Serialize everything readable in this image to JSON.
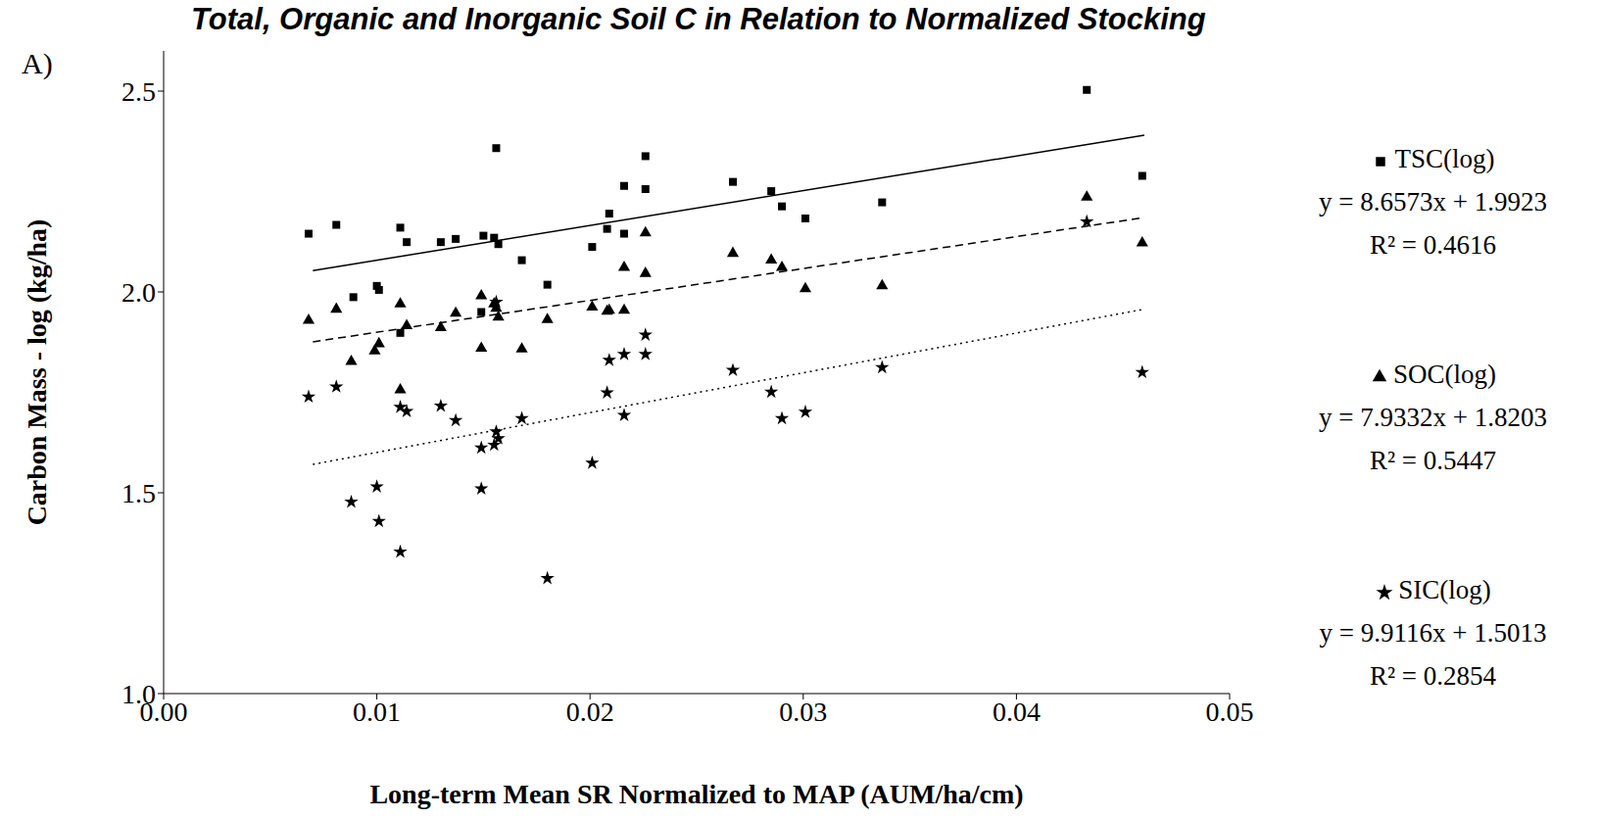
{
  "chart_data": {
    "type": "scatter",
    "title": "Total, Organic and Inorganic Soil C in Relation to Normalized Stocking",
    "panel_label": "A)",
    "x_label": "Long-term Mean SR Normalized to MAP (AUM/ha/cm)",
    "y_label": "Carbon Mass - log (kg/ha)",
    "xlim": [
      0,
      0.05
    ],
    "xticks": [
      {
        "value": 0,
        "label": "0.00"
      },
      0.01,
      0.02,
      0.03,
      0.04,
      0.05
    ],
    "ylim": [
      1,
      2.6
    ],
    "yticks": [
      {
        "value": 1,
        "label": "1.0"
      },
      1.5,
      {
        "value": 2,
        "label": "2.0"
      },
      2.5
    ],
    "grid": false,
    "legend": "right",
    "series": [
      {
        "name": "TSC(log)",
        "color": "#000000",
        "marker": "square",
        "line_style": "solid",
        "equation": "y = 8.6573x + 1.9923",
        "r2": "R² = 0.4616",
        "x": [
          0.0068,
          0.0081,
          0.0089,
          0.01,
          0.0101,
          0.0111,
          0.0111,
          0.0114,
          0.013,
          0.0137,
          0.0149,
          0.015,
          0.0155,
          0.0156,
          0.0157,
          0.0168,
          0.018,
          0.0201,
          0.0208,
          0.0209,
          0.0216,
          0.0216,
          0.0226,
          0.0226,
          0.0267,
          0.0285,
          0.029,
          0.0301,
          0.0337,
          0.0433,
          0.0459
        ],
        "values": [
          2.145,
          2.167,
          1.987,
          2.015,
          2.005,
          1.898,
          2.16,
          2.124,
          2.124,
          2.132,
          1.95,
          2.14,
          2.135,
          2.358,
          2.119,
          2.079,
          2.018,
          2.112,
          2.157,
          2.195,
          2.145,
          2.264,
          2.338,
          2.256,
          2.274,
          2.251,
          2.213,
          2.183,
          2.223,
          2.503,
          2.289
        ],
        "trend": {
          "x": [
            0.007,
            0.046
          ],
          "values": [
            2.0529,
            2.3905
          ]
        }
      },
      {
        "name": "SOC(log)",
        "color": "#000000",
        "marker": "triangle",
        "line_style": "dashed",
        "equation": "y = 7.9332x + 1.8203",
        "r2": "R² = 0.5447",
        "x": [
          0.0068,
          0.0081,
          0.0088,
          0.0099,
          0.0101,
          0.0111,
          0.0111,
          0.0114,
          0.013,
          0.0137,
          0.0149,
          0.0149,
          0.0155,
          0.0156,
          0.0157,
          0.0168,
          0.018,
          0.0201,
          0.0208,
          0.0209,
          0.0216,
          0.0216,
          0.0226,
          0.0226,
          0.0267,
          0.0285,
          0.029,
          0.0301,
          0.0337,
          0.0433,
          0.0459
        ],
        "values": [
          1.929,
          1.957,
          1.827,
          1.853,
          1.871,
          1.97,
          1.756,
          1.916,
          1.911,
          1.947,
          1.99,
          1.86,
          1.97,
          1.959,
          1.937,
          1.858,
          1.931,
          1.962,
          1.952,
          1.954,
          1.954,
          2.061,
          2.147,
          2.046,
          2.096,
          2.079,
          2.061,
          2.008,
          2.015,
          2.236,
          2.122
        ],
        "trend": {
          "x": [
            0.007,
            0.046
          ],
          "values": [
            1.8758,
            2.1852
          ]
        }
      },
      {
        "name": "SIC(log)",
        "color": "#000000",
        "marker": "star",
        "line_style": "dotted",
        "equation": "y = 9.9116x + 1.5013",
        "r2": "R² = 0.2854",
        "x": [
          0.0068,
          0.0081,
          0.0088,
          0.01,
          0.0101,
          0.0111,
          0.0111,
          0.0114,
          0.013,
          0.0137,
          0.0149,
          0.0149,
          0.0155,
          0.0156,
          0.0156,
          0.0157,
          0.0168,
          0.018,
          0.0201,
          0.0208,
          0.0209,
          0.0216,
          0.0216,
          0.0226,
          0.0226,
          0.0267,
          0.0285,
          0.029,
          0.0301,
          0.0337,
          0.0433,
          0.0459
        ],
        "values": [
          1.739,
          1.764,
          1.477,
          1.515,
          1.429,
          1.353,
          1.713,
          1.703,
          1.716,
          1.68,
          1.612,
          1.51,
          1.619,
          1.652,
          1.975,
          1.635,
          1.685,
          1.287,
          1.574,
          1.749,
          1.83,
          1.693,
          1.845,
          1.893,
          1.845,
          1.805,
          1.751,
          1.685,
          1.701,
          1.812,
          2.175,
          1.8
        ],
        "trend": {
          "x": [
            0.007,
            0.046
          ],
          "values": [
            1.5707,
            1.9572
          ]
        }
      }
    ]
  }
}
